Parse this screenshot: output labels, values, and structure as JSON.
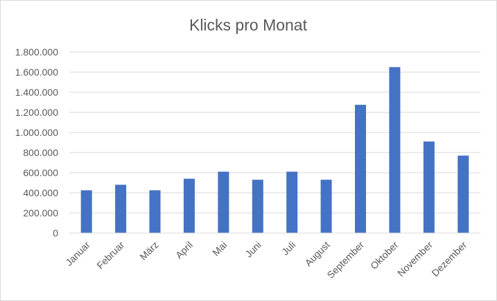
{
  "chart_data": {
    "type": "bar",
    "title": "Klicks pro Monat",
    "xlabel": "",
    "ylabel": "",
    "categories": [
      "Januar",
      "Februar",
      "März",
      "April",
      "Mai",
      "Juni",
      "Juli",
      "August",
      "September",
      "Oktober",
      "November",
      "Dezember"
    ],
    "values": [
      425000,
      480000,
      425000,
      540000,
      610000,
      530000,
      610000,
      530000,
      1275000,
      1650000,
      910000,
      770000
    ],
    "ylim": [
      0,
      1800000
    ],
    "yticks": [
      0,
      200000,
      400000,
      600000,
      800000,
      1000000,
      1200000,
      1400000,
      1600000,
      1800000
    ],
    "ytick_labels": [
      "0",
      "200.000",
      "400.000",
      "600.000",
      "800.000",
      "1.000.000",
      "1.200.000",
      "1.400.000",
      "1.600.000",
      "1.800.000"
    ],
    "grid": true,
    "legend": "none",
    "bar_color": "#4472c4",
    "grid_color": "#d9d9d9"
  }
}
